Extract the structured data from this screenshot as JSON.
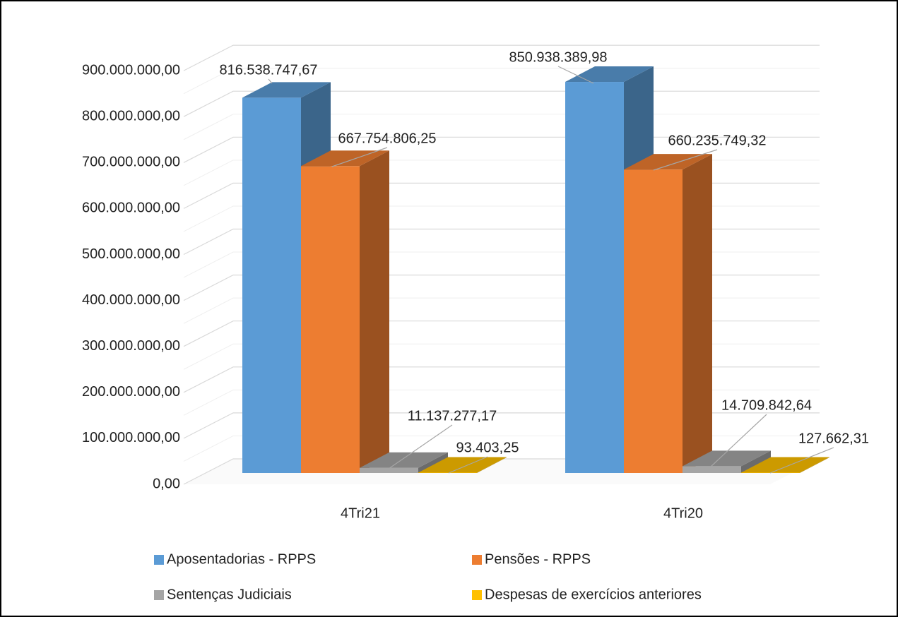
{
  "chart_data": {
    "type": "bar3d",
    "categories": [
      "4Tri21",
      "4Tri20"
    ],
    "series": [
      {
        "name": "Aposentadorias - RPPS",
        "color": "#5b9bd5",
        "values": [
          816538747.67,
          850938389.98
        ],
        "value_labels": [
          "816.538.747,67",
          "850.938.389,98"
        ]
      },
      {
        "name": "Pensões - RPPS",
        "color": "#ed7d31",
        "values": [
          667754806.25,
          660235749.32
        ],
        "value_labels": [
          "667.754.806,25",
          "660.235.749,32"
        ]
      },
      {
        "name": "Sentenças Judiciais",
        "color": "#a5a5a5",
        "values": [
          11137277.17,
          14709842.64
        ],
        "value_labels": [
          "11.137.277,17",
          "14.709.842,64"
        ]
      },
      {
        "name": "Despesas de exercícios anteriores",
        "color": "#ffc000",
        "values": [
          93403.25,
          127662.31
        ],
        "value_labels": [
          "93.403,25",
          "127.662,31"
        ]
      }
    ],
    "ylim": [
      0,
      900000000
    ],
    "yticks": [
      {
        "value": 0,
        "label": "0,00"
      },
      {
        "value": 100000000,
        "label": "100.000.000,00"
      },
      {
        "value": 200000000,
        "label": "200.000.000,00"
      },
      {
        "value": 300000000,
        "label": "300.000.000,00"
      },
      {
        "value": 400000000,
        "label": "400.000.000,00"
      },
      {
        "value": 500000000,
        "label": "500.000.000,00"
      },
      {
        "value": 600000000,
        "label": "600.000.000,00"
      },
      {
        "value": 700000000,
        "label": "700.000.000,00"
      },
      {
        "value": 800000000,
        "label": "800.000.000,00"
      },
      {
        "value": 900000000,
        "label": "900.000.000,00"
      }
    ],
    "grid": true,
    "legend": "bottom"
  }
}
